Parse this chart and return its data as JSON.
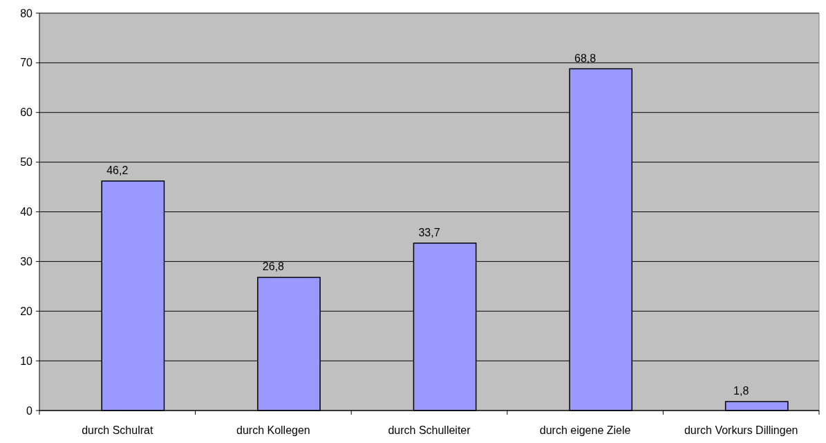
{
  "chart_data": {
    "type": "bar",
    "categories": [
      "durch Schulrat",
      "durch Kollegen",
      "durch Schulleiter",
      "durch eigene Ziele",
      "durch Vorkurs Dillingen"
    ],
    "values": [
      46.2,
      26.8,
      33.7,
      68.8,
      1.8
    ],
    "value_labels": [
      "46,2",
      "26,8",
      "33,7",
      "68,8",
      "1,8"
    ],
    "color": "#9999ff",
    "ylim": [
      0,
      80
    ],
    "yticks": [
      0,
      10,
      20,
      30,
      40,
      50,
      60,
      70,
      80
    ],
    "grid": "y"
  }
}
